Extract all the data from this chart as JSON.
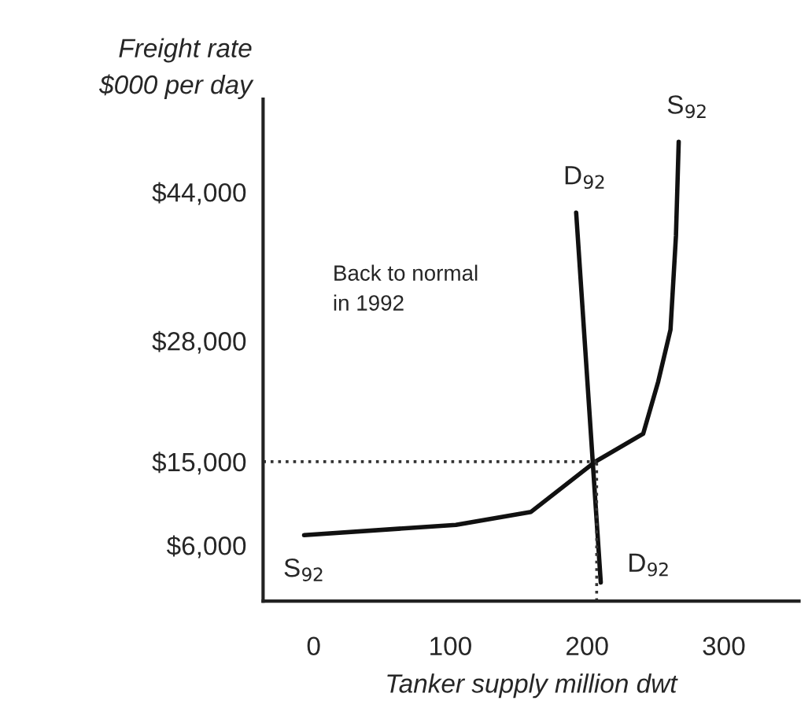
{
  "chart_data": {
    "type": "line",
    "xlabel": "Tanker supply million dwt",
    "ylabel": "Freight rate\n$000 per day",
    "series": [
      {
        "name": "S$_{92}$",
        "color": "#111111",
        "x": [
          -7,
          104,
          159,
          206,
          241,
          252,
          261,
          265,
          267
        ],
        "values": [
          7100,
          8200,
          9600,
          15000,
          18000,
          23600,
          29200,
          39300,
          49400
        ]
      },
      {
        "name": "D$_{92}$",
        "color": "#111111",
        "x": [
          192,
          210
        ],
        "values": [
          41800,
          2000
        ]
      }
    ],
    "xlim": [
      -37,
      355
    ],
    "xticks": [
      0,
      100,
      200,
      300
    ],
    "ylim": [
      0,
      54000
    ],
    "yticks": [
      {
        "value": 6000,
        "label": "$6,000"
      },
      {
        "value": 15000,
        "label": "$15,000"
      },
      {
        "value": 28000,
        "label": "$28,000"
      },
      {
        "value": 44000,
        "label": "$44,000"
      }
    ],
    "ref_lines": [
      {
        "axis": "y",
        "value": 15000,
        "line_style": "dotted"
      },
      {
        "axis": "x",
        "value": 207,
        "line_style": "dotted"
      }
    ],
    "annotations": [
      "Back to normal\nin 1992"
    ],
    "grid": false,
    "line_style": "solid",
    "marker": "none"
  }
}
